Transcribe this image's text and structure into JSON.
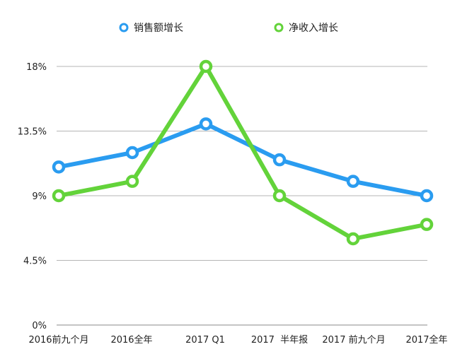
{
  "chart_data": {
    "type": "line",
    "categories": [
      "2016前九个月",
      "2016全年",
      "2017 Q1",
      "2017  半年报",
      "2017 前九个月",
      "2017全年"
    ],
    "series": [
      {
        "name": "销售额增长",
        "color": "#2a9cf0",
        "values": [
          11,
          12,
          14,
          11.5,
          10,
          9
        ]
      },
      {
        "name": "净收入增长",
        "color": "#63d33a",
        "values": [
          9,
          10,
          18,
          9,
          6,
          7
        ]
      }
    ],
    "y_ticks": [
      "0%",
      "4.5%",
      "9%",
      "13.5%",
      "18%"
    ],
    "y_tick_values": [
      0,
      4.5,
      9,
      13.5,
      18
    ],
    "ylim": [
      0,
      18
    ],
    "grid": true,
    "legend_position": "top-center"
  }
}
